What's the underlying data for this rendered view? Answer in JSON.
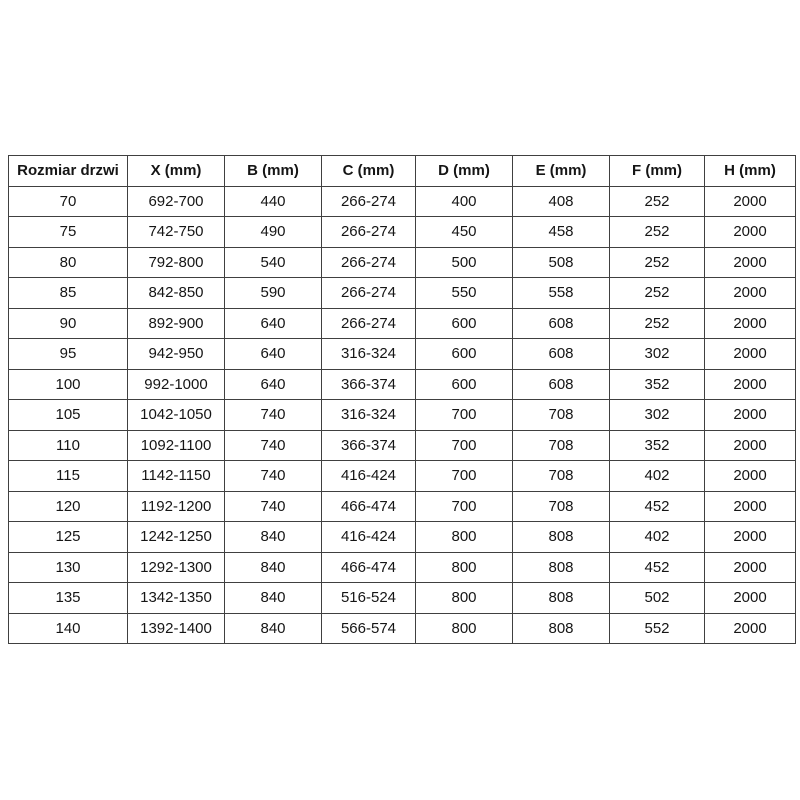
{
  "page": {
    "background": "#ffffff"
  },
  "table": {
    "title": "door-size-specification-table",
    "columns": [
      "Rozmiar drzwi",
      "X (mm)",
      "B (mm)",
      "C (mm)",
      "D (mm)",
      "E (mm)",
      "F (mm)",
      "H (mm)"
    ],
    "rows": [
      [
        "70",
        "692-700",
        "440",
        "266-274",
        "400",
        "408",
        "252",
        "2000"
      ],
      [
        "75",
        "742-750",
        "490",
        "266-274",
        "450",
        "458",
        "252",
        "2000"
      ],
      [
        "80",
        "792-800",
        "540",
        "266-274",
        "500",
        "508",
        "252",
        "2000"
      ],
      [
        "85",
        "842-850",
        "590",
        "266-274",
        "550",
        "558",
        "252",
        "2000"
      ],
      [
        "90",
        "892-900",
        "640",
        "266-274",
        "600",
        "608",
        "252",
        "2000"
      ],
      [
        "95",
        "942-950",
        "640",
        "316-324",
        "600",
        "608",
        "302",
        "2000"
      ],
      [
        "100",
        "992-1000",
        "640",
        "366-374",
        "600",
        "608",
        "352",
        "2000"
      ],
      [
        "105",
        "1042-1050",
        "740",
        "316-324",
        "700",
        "708",
        "302",
        "2000"
      ],
      [
        "110",
        "1092-1100",
        "740",
        "366-374",
        "700",
        "708",
        "352",
        "2000"
      ],
      [
        "115",
        "1142-1150",
        "740",
        "416-424",
        "700",
        "708",
        "402",
        "2000"
      ],
      [
        "120",
        "1192-1200",
        "740",
        "466-474",
        "700",
        "708",
        "452",
        "2000"
      ],
      [
        "125",
        "1242-1250",
        "840",
        "416-424",
        "800",
        "808",
        "402",
        "2000"
      ],
      [
        "130",
        "1292-1300",
        "840",
        "466-474",
        "800",
        "808",
        "452",
        "2000"
      ],
      [
        "135",
        "1342-1350",
        "840",
        "516-524",
        "800",
        "808",
        "502",
        "2000"
      ],
      [
        "140",
        "1392-1400",
        "840",
        "566-574",
        "800",
        "808",
        "552",
        "2000"
      ]
    ],
    "style": {
      "border_color": "#404040",
      "text_color": "#151515",
      "background_color": "#ffffff",
      "header_bold": true
    }
  }
}
